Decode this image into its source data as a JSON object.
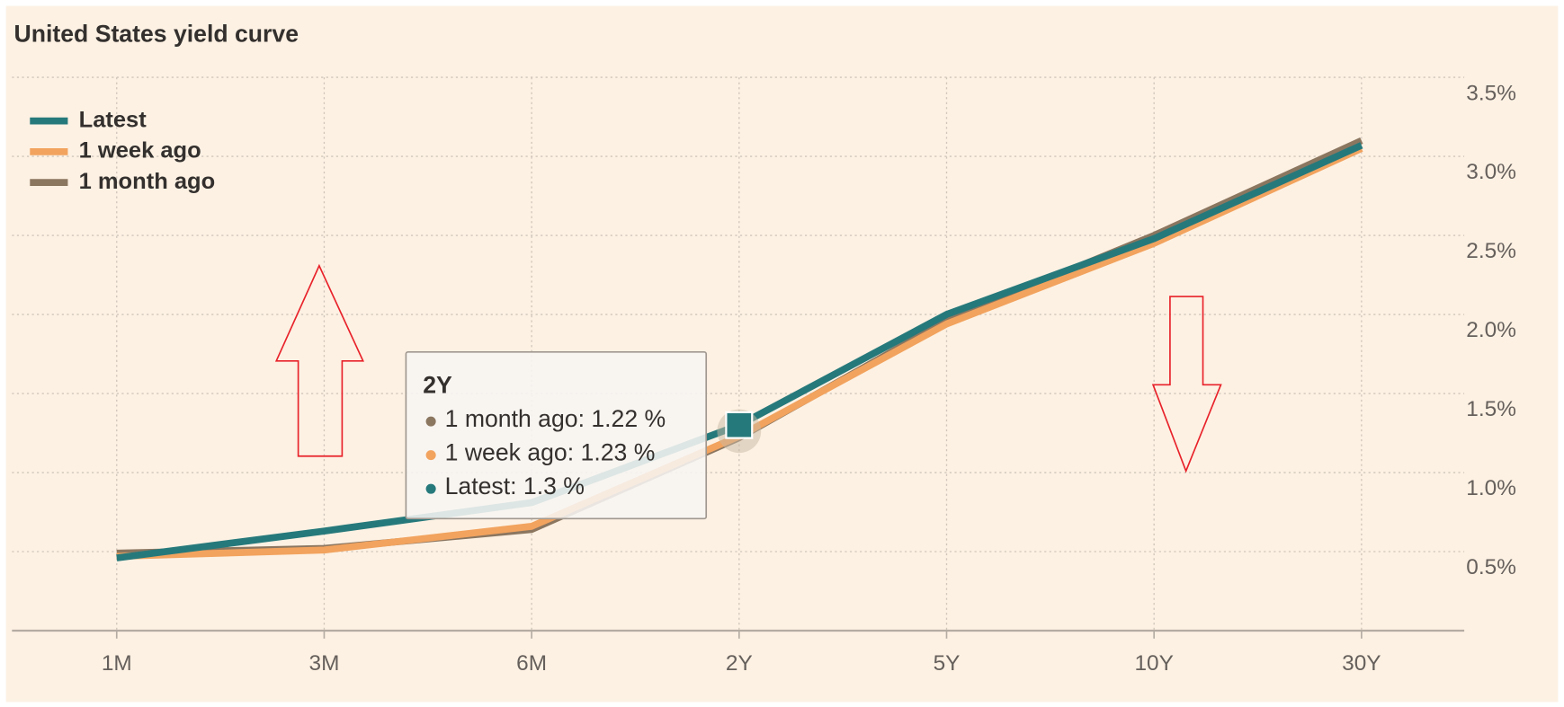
{
  "chart_data": {
    "type": "line",
    "title": "United States yield curve",
    "categories": [
      "1M",
      "3M",
      "6M",
      "2Y",
      "5Y",
      "10Y",
      "30Y"
    ],
    "series": [
      {
        "name": "1 month ago",
        "color": "#8b7660",
        "values": [
          0.49,
          0.52,
          0.64,
          1.22,
          1.96,
          2.5,
          3.1
        ]
      },
      {
        "name": "1 week ago",
        "color": "#f2a35e",
        "values": [
          0.47,
          0.51,
          0.66,
          1.23,
          1.94,
          2.45,
          3.05
        ]
      },
      {
        "name": "Latest",
        "color": "#26797b",
        "values": [
          0.46,
          0.63,
          0.81,
          1.3,
          2.0,
          2.48,
          3.07
        ]
      }
    ],
    "legend_order": [
      2,
      1,
      0
    ],
    "ylim": [
      0,
      3.5
    ],
    "yticks": [
      {
        "value": 0.5,
        "label": "0.5%"
      },
      {
        "value": 1.0,
        "label": "1.0%"
      },
      {
        "value": 1.5,
        "label": "1.5%"
      },
      {
        "value": 2.0,
        "label": "2.0%"
      },
      {
        "value": 2.5,
        "label": "2.5%"
      },
      {
        "value": 3.0,
        "label": "3.0%"
      },
      {
        "value": 3.5,
        "label": "3.5%"
      }
    ],
    "grid": true,
    "legend_position": "upper left",
    "tooltip": {
      "category_index": 3,
      "items": [
        "1 month ago: 1.22 %",
        "1 week ago: 1.23 %",
        "Latest: 1.3 %"
      ]
    }
  }
}
